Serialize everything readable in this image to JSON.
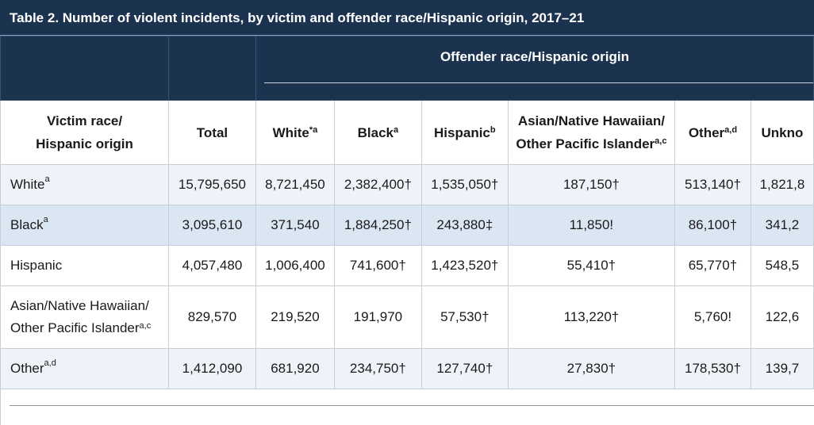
{
  "table": {
    "title": "Table 2. Number of violent incidents, by victim and offender race/Hispanic origin, 2017–21",
    "group_header": "Offender race/Hispanic origin",
    "columns": [
      {
        "label": "Victim race/",
        "label2": "Hispanic origin",
        "sup": ""
      },
      {
        "label": "Total",
        "sup": ""
      },
      {
        "label": "White",
        "sup": "*a"
      },
      {
        "label": "Black",
        "sup": "a"
      },
      {
        "label": "Hispanic",
        "sup": "b"
      },
      {
        "label": "Asian/Native Hawaiian/",
        "label2": "Other Pacific Islander",
        "sup": "a,c"
      },
      {
        "label": "Other",
        "sup": "a,d"
      },
      {
        "label": "Unkno",
        "sup": ""
      }
    ],
    "rows": [
      {
        "label": "White",
        "label_sup": "a",
        "values": [
          "15,795,650",
          "8,721,450",
          "2,382,400†",
          "1,535,050†",
          "187,150†",
          "513,140†",
          "1,821,8"
        ]
      },
      {
        "label": "Black",
        "label_sup": "a",
        "values": [
          "3,095,610",
          "371,540",
          "1,884,250†",
          "243,880‡",
          "11,850!",
          "86,100†",
          "341,2"
        ]
      },
      {
        "label": "Hispanic",
        "label_sup": "",
        "values": [
          "4,057,480",
          "1,006,400",
          "741,600†",
          "1,423,520†",
          "55,410†",
          "65,770†",
          "548,5"
        ]
      },
      {
        "label": "Asian/Native Hawaiian/",
        "label2": "Other Pacific Islander",
        "label_sup": "a,c",
        "values": [
          "829,570",
          "219,520",
          "191,970",
          "57,530†",
          "113,220†",
          "5,760!",
          "122,6"
        ]
      },
      {
        "label": "Other",
        "label_sup": "a,d",
        "values": [
          "1,412,090",
          "681,920",
          "234,750†",
          "127,740†",
          "27,830†",
          "178,530†",
          "139,7"
        ]
      }
    ]
  },
  "colors": {
    "header_navy": "#1c3350",
    "row_light": "#eef3f9",
    "row_blue": "#dbe6f3",
    "grid": "#c9cfd7"
  }
}
